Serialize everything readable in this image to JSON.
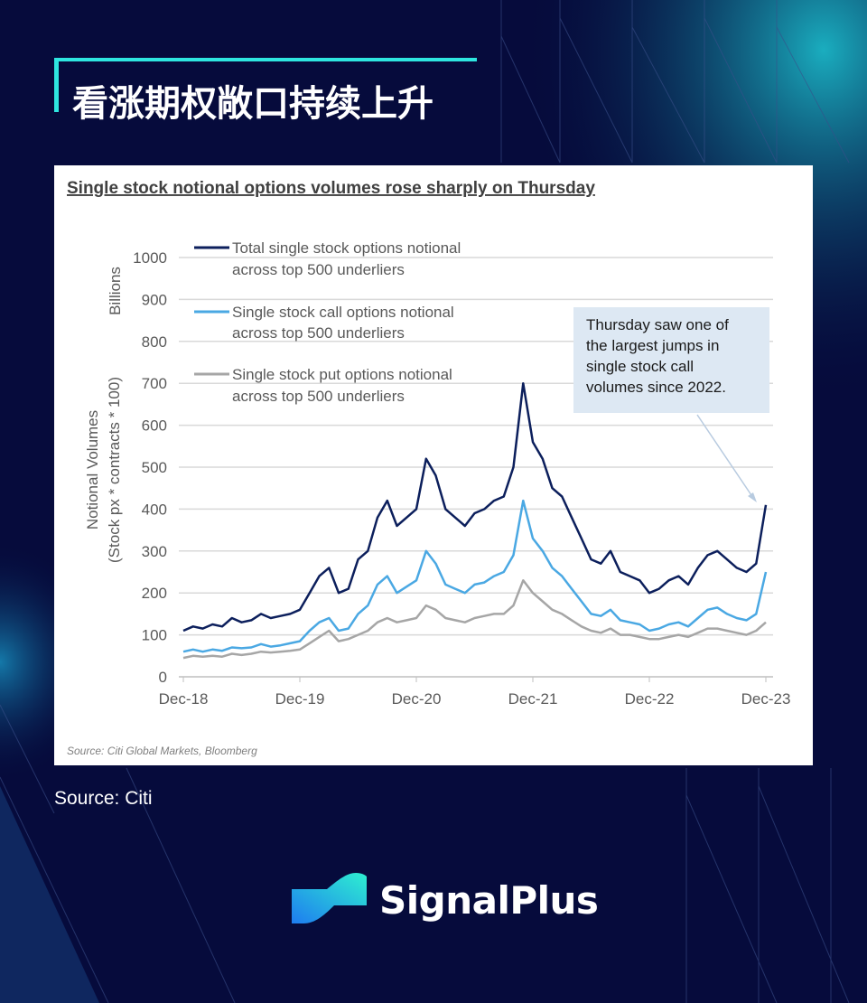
{
  "header": {
    "title": "看涨期权敞口持续上升"
  },
  "footer": {
    "source": "Source: Citi",
    "brand": "SignalPlus"
  },
  "colors": {
    "background": "#060b3c",
    "accent": "#2ee6e0",
    "total": "#0c1f5c",
    "call": "#4aa8e3",
    "put": "#a6a6a6",
    "annotation_bg": "#dde8f3"
  },
  "chart_data": {
    "type": "line",
    "title": "Single stock notional options volumes rose sharply on Thursday",
    "ylabel_line1": "Notional Volumes",
    "ylabel_line2": "(Stock px * contracts * 100)",
    "yunit": "Billions",
    "ylim": [
      0,
      1000
    ],
    "yticks": [
      "0",
      "100",
      "200",
      "300",
      "400",
      "500",
      "600",
      "700",
      "800",
      "900",
      "1000"
    ],
    "xticks": [
      "Dec-18",
      "Dec-19",
      "Dec-20",
      "Dec-21",
      "Dec-22",
      "Dec-23"
    ],
    "xlim": [
      "2018-12",
      "2023-12"
    ],
    "grid": true,
    "legend_placement": "top-left",
    "x_frequency": "monthly, Dec-18 to Dec-23",
    "series": [
      {
        "name": "Total single stock options notional across top 500 underliers",
        "legend_line1": "Total single stock options notional",
        "legend_line2": "across top 500 underliers",
        "values": [
          110,
          120,
          115,
          125,
          120,
          140,
          130,
          135,
          150,
          140,
          145,
          150,
          160,
          200,
          240,
          260,
          200,
          210,
          280,
          300,
          380,
          420,
          360,
          380,
          400,
          520,
          480,
          400,
          380,
          360,
          390,
          400,
          420,
          430,
          500,
          700,
          560,
          520,
          450,
          430,
          380,
          330,
          280,
          270,
          300,
          250,
          240,
          230,
          200,
          210,
          230,
          240,
          220,
          260,
          290,
          300,
          280,
          260,
          250,
          270,
          410
        ]
      },
      {
        "name": "Single stock call options notional across top 500 underliers",
        "legend_line1": "Single stock call options notional",
        "legend_line2": "across top 500 underliers",
        "values": [
          60,
          65,
          60,
          65,
          62,
          70,
          68,
          70,
          78,
          72,
          75,
          80,
          85,
          110,
          130,
          140,
          110,
          115,
          150,
          170,
          220,
          240,
          200,
          215,
          230,
          300,
          270,
          220,
          210,
          200,
          220,
          225,
          240,
          250,
          290,
          420,
          330,
          300,
          260,
          240,
          210,
          180,
          150,
          145,
          160,
          135,
          130,
          125,
          110,
          115,
          125,
          130,
          120,
          140,
          160,
          165,
          150,
          140,
          135,
          150,
          250
        ]
      },
      {
        "name": "Single stock put options notional across top 500 underliers",
        "legend_line1": "Single stock put options notional",
        "legend_line2": "across top 500 underliers",
        "values": [
          45,
          50,
          48,
          50,
          48,
          55,
          52,
          55,
          60,
          58,
          60,
          62,
          65,
          80,
          95,
          110,
          85,
          90,
          100,
          110,
          130,
          140,
          130,
          135,
          140,
          170,
          160,
          140,
          135,
          130,
          140,
          145,
          150,
          150,
          170,
          230,
          200,
          180,
          160,
          150,
          135,
          120,
          110,
          105,
          115,
          100,
          100,
          95,
          90,
          90,
          95,
          100,
          95,
          105,
          115,
          115,
          110,
          105,
          100,
          110,
          130
        ]
      }
    ],
    "annotation": {
      "lines": [
        "Thursday saw one of",
        "the largest jumps in",
        "single stock call",
        "volumes since 2022."
      ],
      "points_to": "Dec-23"
    },
    "source": "Source: Citi Global Markets, Bloomberg"
  }
}
